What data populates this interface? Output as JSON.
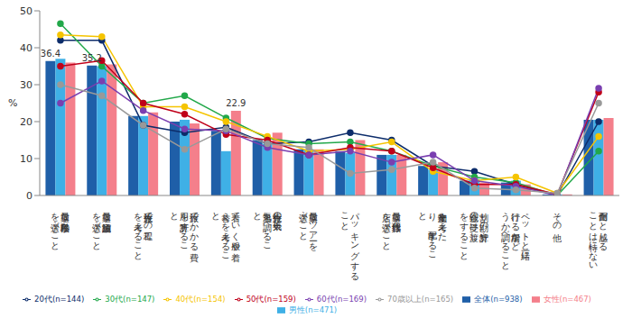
{
  "chart_data": {
    "type": "bar",
    "y_label": "%",
    "categories": [
      "最適な移動手段を選ぶこと",
      "最適な宿泊施設を選ぶこと",
      "旅行先での工程を考えること",
      "旅行でかかる費用を計算すること",
      "着ていく服や着替えを考えること",
      "旅行先の天気や気温を調べること",
      "最適なツアーを選ぶこと",
      "パッキングすること",
      "最適な旅行代理店を選ぶこと",
      "土産物を考えたり、手配すること",
      "割り勘の計算や金銭の受け渡しをすること",
      "ペットと一緒に行ける場所かどうか調べること",
      "その他",
      "面倒だと感じることは特にない"
    ],
    "ylim": [
      0,
      50
    ],
    "yticks": [
      0,
      10,
      20,
      30,
      40,
      50
    ],
    "grid": false,
    "legend": "bottom",
    "series": [
      {
        "name": "全体(n=938)",
        "type": "bar",
        "color": "#1f5fa8",
        "values": [
          36.4,
          35.2,
          21.5,
          20,
          17.5,
          15,
          12.5,
          12,
          11,
          8,
          4,
          3.5,
          0.3,
          20.5
        ],
        "value_labels": [
          "36.4",
          "35.2",
          null,
          null,
          null,
          null,
          null,
          null,
          null,
          null,
          null,
          null,
          null,
          null
        ]
      },
      {
        "name": "男性(n=471)",
        "type": "bar",
        "color": "#3fb0e6",
        "values": [
          37,
          35,
          21.5,
          20.5,
          12,
          14,
          12.5,
          11.5,
          11,
          7,
          4.5,
          4,
          0.3,
          20.5
        ]
      },
      {
        "name": "女性(n=467)",
        "type": "bar",
        "color": "#f47f8b",
        "values": [
          36,
          35.5,
          22.5,
          19.5,
          22.9,
          17,
          12.5,
          15,
          11,
          9,
          3.5,
          3,
          0.3,
          21
        ],
        "value_labels": [
          null,
          null,
          null,
          null,
          "22.9",
          null,
          null,
          null,
          null,
          null,
          null,
          null,
          null,
          null
        ]
      },
      {
        "name": "20代(n=144)",
        "type": "line",
        "marker": "circle",
        "color": "#0d2d6b",
        "values": [
          42,
          42,
          19,
          17,
          18.5,
          14,
          14.5,
          17,
          15,
          8,
          6.5,
          3,
          0,
          20
        ]
      },
      {
        "name": "30代(n=147)",
        "type": "line",
        "marker": "circle",
        "color": "#22a84a",
        "values": [
          46.5,
          35,
          25,
          27,
          21,
          15.5,
          14,
          14.5,
          12,
          8,
          5,
          3.5,
          0,
          12
        ]
      },
      {
        "name": "40代(n=154)",
        "type": "line",
        "marker": "circle",
        "color": "#f5c400",
        "values": [
          43.5,
          43,
          24,
          24,
          20,
          16,
          12,
          12.5,
          14.5,
          6.5,
          4,
          5,
          0.6,
          16
        ]
      },
      {
        "name": "50代(n=159)",
        "type": "line",
        "marker": "circle",
        "color": "#c0001a",
        "values": [
          35,
          36.5,
          25,
          22,
          16.5,
          15,
          11,
          13,
          12,
          7.5,
          3,
          3,
          0.3,
          28
        ]
      },
      {
        "name": "60代(n=169)",
        "type": "line",
        "marker": "circle",
        "color": "#7a3fb0",
        "values": [
          25,
          31,
          23,
          18,
          17.5,
          13,
          11,
          12,
          9,
          11,
          4,
          2.5,
          0,
          29
        ]
      },
      {
        "name": "70歳以上(n=165)",
        "type": "line",
        "marker": "circle",
        "color": "#999999",
        "values": [
          30,
          27,
          19,
          12.5,
          18,
          14,
          13,
          6,
          7,
          9,
          2,
          1.5,
          0.6,
          25
        ]
      }
    ]
  }
}
